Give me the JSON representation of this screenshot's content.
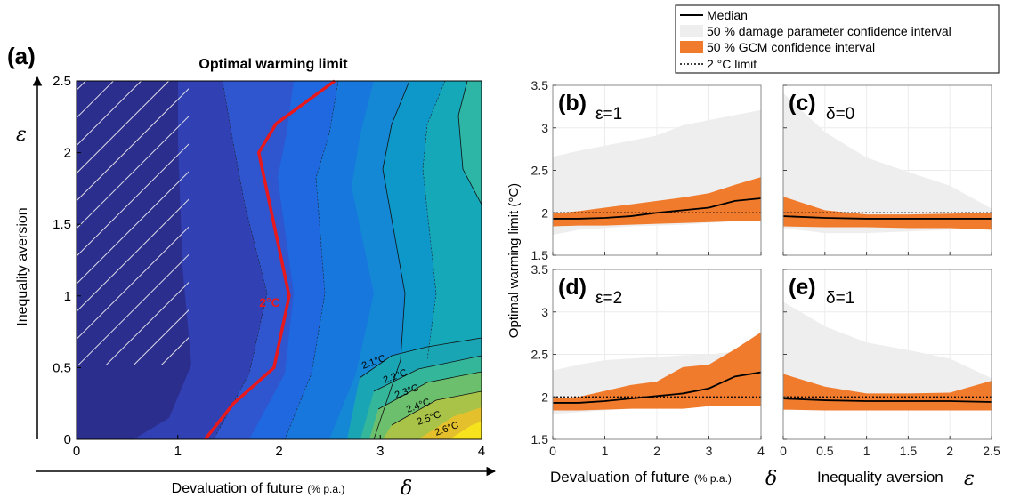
{
  "legend": {
    "items": [
      {
        "label": "Median",
        "kind": "line",
        "color": "#000000"
      },
      {
        "label": "50 % damage parameter confidence interval",
        "kind": "patch",
        "color": "#eeeeee"
      },
      {
        "label": "50 % GCM confidence interval",
        "kind": "patch",
        "color": "#f07b2c"
      },
      {
        "label": "2 °C limit",
        "kind": "dotted",
        "color": "#000000"
      }
    ]
  },
  "panel_a": {
    "tag": "(a)",
    "title": "Optimal warming limit",
    "xlabel": "Devaluation of future",
    "xlabel_unit": "(% p.a.)",
    "xlabel_symbol": "δ",
    "ylabel": "Inequality aversion",
    "ylabel_symbol": "ε",
    "xticks": [
      "0",
      "1",
      "2",
      "3",
      "4"
    ],
    "yticks": [
      "0",
      "0.5",
      "1",
      "1.5",
      "2",
      "2.5"
    ],
    "red_label": "2°C",
    "contour_labels": [
      "2.1°C",
      "2.2°C",
      "2.3°C",
      "2.4°C",
      "2.5°C",
      "2.6°C"
    ]
  },
  "chart_data": [
    {
      "type": "heatmap",
      "panel": "a",
      "title": "Optimal warming limit",
      "xlabel": "Devaluation of future (% p.a.) δ",
      "ylabel": "Inequality aversion ε",
      "xlim": [
        0,
        4
      ],
      "ylim": [
        0,
        2.5
      ],
      "colormap": "parula",
      "red_contour_2C": {
        "x": [
          1.27,
          1.55,
          1.95,
          2.1,
          1.95,
          1.8,
          1.97,
          2.55
        ],
        "y": [
          0,
          0.25,
          0.5,
          1.0,
          1.5,
          2.0,
          2.2,
          2.5
        ]
      },
      "hatched_region": {
        "x": [
          0,
          1.1
        ],
        "y": [
          0.5,
          2.5
        ]
      },
      "contour_labels": [
        "2.1°C",
        "2.2°C",
        "2.3°C",
        "2.4°C",
        "2.5°C",
        "2.6°C"
      ]
    },
    {
      "type": "area",
      "panel": "b",
      "tag": "(b)",
      "subscript": "ε=1",
      "x": [
        0,
        0.5,
        1,
        1.5,
        2,
        2.5,
        3,
        3.5,
        4
      ],
      "median": [
        1.93,
        1.93,
        1.94,
        1.96,
        2.0,
        2.03,
        2.06,
        2.14,
        2.17
      ],
      "gcm_lower": [
        1.84,
        1.85,
        1.85,
        1.86,
        1.87,
        1.88,
        1.89,
        1.9,
        1.9
      ],
      "gcm_upper": [
        1.99,
        2.02,
        2.06,
        2.1,
        2.14,
        2.18,
        2.23,
        2.33,
        2.42
      ],
      "damage_lower": [
        1.74,
        1.8,
        1.82,
        1.84,
        1.85,
        1.86,
        1.88,
        1.9,
        1.91
      ],
      "damage_upper": [
        2.66,
        2.73,
        2.79,
        2.85,
        2.91,
        3.03,
        3.09,
        3.15,
        3.21
      ],
      "limit": 2,
      "xlim": [
        0,
        4
      ],
      "ylim": [
        1.5,
        3.5
      ]
    },
    {
      "type": "area",
      "panel": "c",
      "tag": "(c)",
      "subscript": "δ=0",
      "x": [
        0,
        0.5,
        1,
        1.5,
        2,
        2.5
      ],
      "median": [
        1.96,
        1.94,
        1.93,
        1.93,
        1.93,
        1.93
      ],
      "gcm_lower": [
        1.84,
        1.83,
        1.83,
        1.82,
        1.82,
        1.8
      ],
      "gcm_upper": [
        2.19,
        2.03,
        1.98,
        1.98,
        1.99,
        2.0
      ],
      "damage_lower": [
        1.82,
        1.76,
        1.76,
        1.78,
        1.8,
        1.82
      ],
      "damage_upper": [
        3.41,
        2.95,
        2.65,
        2.48,
        2.32,
        2.05
      ],
      "limit": 2,
      "xlim": [
        0,
        2.5
      ],
      "ylim": [
        1.5,
        3.5
      ]
    },
    {
      "type": "area",
      "panel": "d",
      "tag": "(d)",
      "subscript": "ε=2",
      "x": [
        0,
        0.5,
        1,
        1.5,
        2,
        2.5,
        3,
        3.5,
        4
      ],
      "median": [
        1.93,
        1.93,
        1.95,
        1.98,
        2.01,
        2.04,
        2.1,
        2.24,
        2.29
      ],
      "gcm_lower": [
        1.84,
        1.84,
        1.85,
        1.86,
        1.86,
        1.86,
        1.89,
        1.89,
        1.89
      ],
      "gcm_upper": [
        1.98,
        2.0,
        2.07,
        2.14,
        2.18,
        2.35,
        2.38,
        2.56,
        2.76
      ],
      "damage_lower": [
        1.8,
        1.82,
        1.84,
        1.86,
        1.87,
        1.88,
        1.9,
        1.91,
        1.92
      ],
      "damage_upper": [
        2.31,
        2.38,
        2.43,
        2.45,
        2.47,
        2.49,
        2.5,
        2.53,
        2.58
      ],
      "limit": 2,
      "xlim": [
        0,
        4
      ],
      "ylim": [
        1.5,
        3.5
      ]
    },
    {
      "type": "area",
      "panel": "e",
      "tag": "(e)",
      "subscript": "δ=1",
      "x": [
        0,
        0.5,
        1,
        1.5,
        2,
        2.5
      ],
      "median": [
        1.98,
        1.96,
        1.95,
        1.95,
        1.95,
        1.94
      ],
      "gcm_lower": [
        1.85,
        1.84,
        1.84,
        1.84,
        1.84,
        1.84
      ],
      "gcm_upper": [
        2.27,
        2.12,
        2.04,
        2.04,
        2.05,
        2.19
      ],
      "damage_lower": [
        1.85,
        1.85,
        1.86,
        1.87,
        1.87,
        1.88
      ],
      "damage_upper": [
        3.12,
        2.83,
        2.64,
        2.55,
        2.45,
        2.22
      ],
      "limit": 2,
      "xlim": [
        0,
        2.5
      ],
      "ylim": [
        1.5,
        3.5
      ]
    }
  ],
  "right_panels": {
    "ylabel": "Optimal warming limit (°C)",
    "yticks": [
      "1.5",
      "2",
      "2.5",
      "3",
      "3.5"
    ],
    "xticks_delta": [
      "0",
      "1",
      "2",
      "3",
      "4"
    ],
    "xticks_eps": [
      "0",
      "0.5",
      "1",
      "1.5",
      "2",
      "2.5"
    ],
    "xlabel_left": "Devaluation of future",
    "xlabel_left_unit": "(% p.a.)",
    "xlabel_left_symbol": "δ",
    "xlabel_right": "Inequality aversion",
    "xlabel_right_symbol": "ε"
  }
}
